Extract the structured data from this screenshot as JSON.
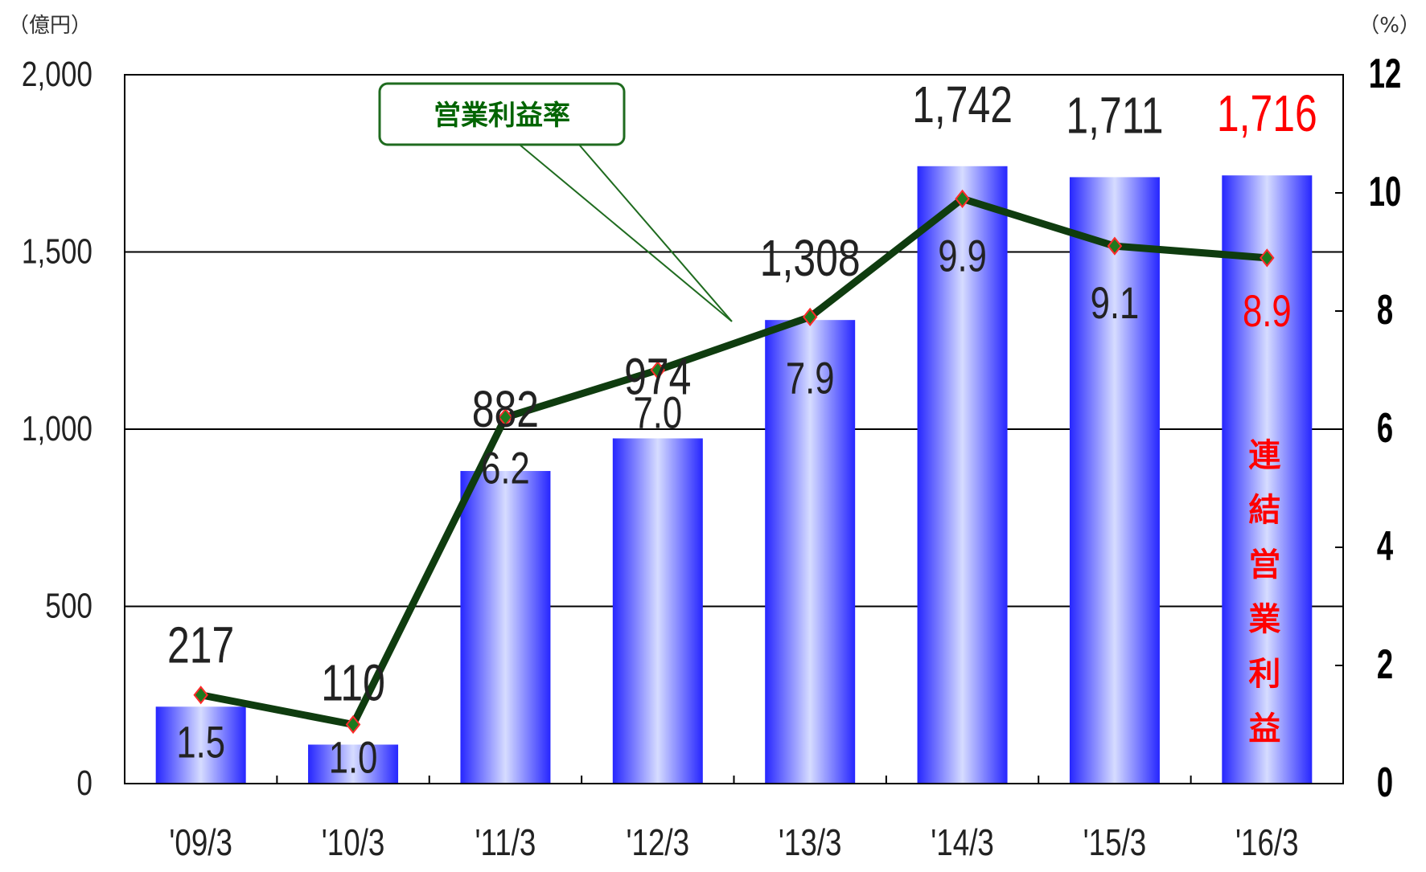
{
  "chart_data": {
    "type": "bar",
    "categories": [
      "'09/3",
      "'10/3",
      "'11/3",
      "'12/3",
      "'13/3",
      "'14/3",
      "'15/3",
      "'16/3"
    ],
    "series": [
      {
        "name": "連結営業利益",
        "type": "bar",
        "axis": "left",
        "values": [
          217,
          110,
          882,
          974,
          1308,
          1742,
          1711,
          1716
        ],
        "labels": [
          "217",
          "110",
          "882",
          "974",
          "1,308",
          "1,742",
          "1,711",
          "1,716"
        ]
      },
      {
        "name": "営業利益率",
        "type": "line",
        "axis": "right",
        "values": [
          1.5,
          1.0,
          6.2,
          7.0,
          7.9,
          9.9,
          9.1,
          8.9
        ],
        "labels": [
          "1.5",
          "1.0",
          "6.2",
          "7.0",
          "7.9",
          "9.9",
          "9.1",
          "8.9"
        ]
      }
    ],
    "y_left": {
      "unit": "（億円）",
      "ylim": [
        0,
        2000
      ],
      "ticks": [
        0,
        500,
        1000,
        1500,
        2000
      ],
      "tick_labels": [
        "0",
        "500",
        "1,000",
        "1,500",
        "2,000"
      ]
    },
    "y_right": {
      "unit": "（%）",
      "ylim": [
        0,
        12
      ],
      "ticks": [
        0,
        2,
        4,
        6,
        8,
        10,
        12
      ],
      "tick_labels": [
        "0",
        "2",
        "4",
        "6",
        "8",
        "10",
        "12"
      ]
    },
    "grid": "horizontal",
    "highlight_index": 7,
    "colors": {
      "bar_edge": "#2626ff",
      "bar_center": "#d6dcff",
      "line": "#0f3c0f",
      "marker_fill": "#1e7a1e",
      "marker_edge": "#ff2a2a",
      "highlight": "#ff0000",
      "text": "#222222",
      "callout_border": "#1f6b1f",
      "callout_text": "#006400"
    },
    "annotations": {
      "line_callout": "営業利益率",
      "bar_label_vertical": "連結営業利益"
    }
  }
}
